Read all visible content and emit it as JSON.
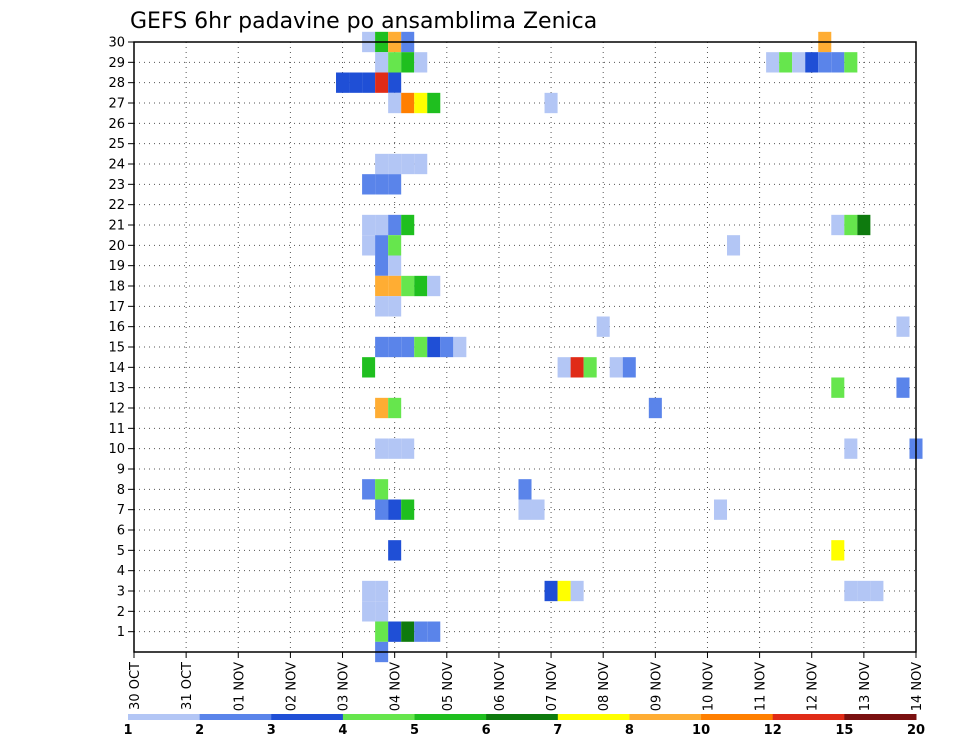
{
  "chart_data": {
    "type": "heatmap",
    "title": "GEFS 6hr padavine po ansamblima Zenica",
    "xlabel": "",
    "ylabel": "",
    "x_ticks": [
      "30 OCT",
      "31 OCT",
      "01 NOV",
      "02 NOV",
      "03 NOV",
      "04 NOV",
      "05 NOV",
      "06 NOV",
      "07 NOV",
      "08 NOV",
      "09 NOV",
      "10 NOV",
      "11 NOV",
      "12 NOV",
      "13 NOV",
      "14 NOV"
    ],
    "xlim": [
      0,
      60
    ],
    "y_ticks": [
      1,
      2,
      3,
      4,
      5,
      6,
      7,
      8,
      9,
      10,
      11,
      12,
      13,
      14,
      15,
      16,
      17,
      18,
      19,
      20,
      21,
      22,
      23,
      24,
      25,
      26,
      27,
      28,
      29,
      30
    ],
    "ylim": [
      0,
      30
    ],
    "colorbar": {
      "labels": [
        "1",
        "2",
        "3",
        "4",
        "5",
        "6",
        "7",
        "8",
        "10",
        "12",
        "15",
        "20"
      ],
      "colors": [
        "#b3c6f5",
        "#5a84ea",
        "#1f4fd6",
        "#66e64d",
        "#1fbf1f",
        "#0e7a0e",
        "#ffff00",
        "#ffad33",
        "#ff7f00",
        "#e02b17",
        "#7a1010"
      ]
    },
    "cells": [
      [
        0,
        30,
        18,
        1
      ],
      [
        0,
        30,
        19,
        5
      ],
      [
        0,
        30,
        20,
        8
      ],
      [
        0,
        30,
        21,
        2
      ],
      [
        0,
        30,
        53,
        8
      ],
      [
        1,
        29,
        19,
        1
      ],
      [
        1,
        29,
        20,
        4
      ],
      [
        1,
        29,
        21,
        5
      ],
      [
        1,
        29,
        22,
        1
      ],
      [
        1,
        29,
        49,
        1
      ],
      [
        1,
        29,
        50,
        4
      ],
      [
        1,
        29,
        51,
        1
      ],
      [
        1,
        29,
        52,
        3
      ],
      [
        1,
        29,
        53,
        2
      ],
      [
        1,
        29,
        54,
        2
      ],
      [
        1,
        29,
        55,
        4
      ],
      [
        2,
        28,
        16,
        3
      ],
      [
        2,
        28,
        17,
        3
      ],
      [
        2,
        28,
        18,
        3
      ],
      [
        2,
        28,
        19,
        10
      ],
      [
        2,
        28,
        20,
        3
      ],
      [
        3,
        27,
        20,
        1
      ],
      [
        3,
        27,
        21,
        9
      ],
      [
        3,
        27,
        22,
        7
      ],
      [
        3,
        27,
        23,
        5
      ],
      [
        3,
        27,
        32,
        1
      ],
      [
        4,
        24,
        19,
        1
      ],
      [
        4,
        24,
        20,
        1
      ],
      [
        4,
        24,
        21,
        1
      ],
      [
        4,
        24,
        22,
        1
      ],
      [
        5,
        23,
        18,
        2
      ],
      [
        5,
        23,
        19,
        2
      ],
      [
        5,
        23,
        20,
        2
      ],
      [
        6,
        21,
        18,
        1
      ],
      [
        6,
        21,
        19,
        1
      ],
      [
        6,
        21,
        20,
        2
      ],
      [
        6,
        21,
        21,
        5
      ],
      [
        6,
        21,
        54,
        1
      ],
      [
        6,
        21,
        55,
        4
      ],
      [
        6,
        21,
        56,
        6
      ],
      [
        7,
        20,
        18,
        1
      ],
      [
        7,
        20,
        19,
        2
      ],
      [
        7,
        20,
        20,
        4
      ],
      [
        7,
        20,
        46,
        1
      ],
      [
        8,
        19,
        19,
        2
      ],
      [
        8,
        19,
        20,
        1
      ],
      [
        9,
        18,
        19,
        8
      ],
      [
        9,
        18,
        20,
        8
      ],
      [
        9,
        18,
        21,
        4
      ],
      [
        9,
        18,
        22,
        5
      ],
      [
        9,
        18,
        23,
        1
      ],
      [
        10,
        17,
        19,
        1
      ],
      [
        10,
        17,
        20,
        1
      ],
      [
        10,
        16,
        36,
        1
      ],
      [
        10,
        16,
        59,
        1
      ],
      [
        11,
        15,
        19,
        2
      ],
      [
        11,
        15,
        20,
        2
      ],
      [
        11,
        15,
        21,
        2
      ],
      [
        11,
        15,
        22,
        4
      ],
      [
        11,
        15,
        23,
        3
      ],
      [
        11,
        15,
        24,
        2
      ],
      [
        11,
        15,
        25,
        1
      ],
      [
        12,
        14,
        18,
        5
      ],
      [
        12,
        14,
        33,
        1
      ],
      [
        12,
        14,
        34,
        10
      ],
      [
        12,
        14,
        35,
        4
      ],
      [
        12,
        14,
        37,
        1
      ],
      [
        12,
        14,
        38,
        2
      ],
      [
        13,
        13,
        54,
        4
      ],
      [
        13,
        13,
        59,
        2
      ],
      [
        14,
        12,
        19,
        8
      ],
      [
        14,
        12,
        20,
        4
      ],
      [
        14,
        12,
        40,
        2
      ],
      [
        15,
        10,
        19,
        1
      ],
      [
        15,
        10,
        20,
        1
      ],
      [
        15,
        10,
        21,
        1
      ],
      [
        15,
        10,
        55,
        1
      ],
      [
        15,
        10,
        60,
        2
      ],
      [
        16,
        8,
        18,
        2
      ],
      [
        16,
        8,
        19,
        4
      ],
      [
        16,
        8,
        30,
        2
      ],
      [
        17,
        7,
        19,
        2
      ],
      [
        17,
        7,
        20,
        3
      ],
      [
        17,
        7,
        21,
        5
      ],
      [
        17,
        7,
        30,
        1
      ],
      [
        17,
        7,
        31,
        1
      ],
      [
        17,
        7,
        45,
        1
      ],
      [
        18,
        5,
        20,
        3
      ],
      [
        18,
        5,
        54,
        7
      ],
      [
        19,
        3,
        18,
        1
      ],
      [
        19,
        3,
        19,
        1
      ],
      [
        19,
        3,
        32,
        3
      ],
      [
        19,
        3,
        33,
        7
      ],
      [
        19,
        3,
        34,
        1
      ],
      [
        19,
        3,
        55,
        1
      ],
      [
        19,
        3,
        56,
        1
      ],
      [
        19,
        3,
        57,
        1
      ],
      [
        20,
        2,
        18,
        1
      ],
      [
        20,
        2,
        19,
        1
      ],
      [
        21,
        1,
        19,
        4
      ],
      [
        21,
        1,
        20,
        3
      ],
      [
        21,
        1,
        21,
        6
      ],
      [
        21,
        1,
        22,
        2
      ],
      [
        21,
        1,
        23,
        2
      ],
      [
        22,
        0,
        19,
        2
      ]
    ]
  }
}
